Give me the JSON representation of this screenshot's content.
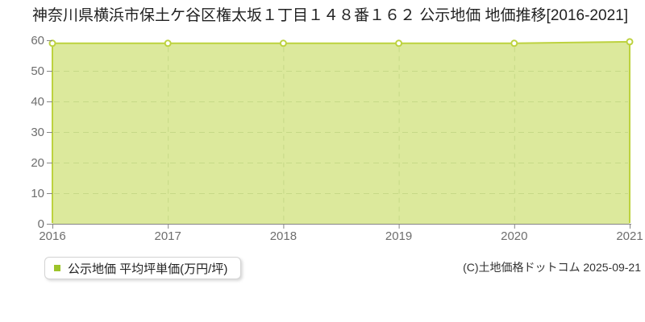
{
  "title": "神奈川県横浜市保土ケ谷区権太坂１丁目１４８番１６２ 公示地価 地価推移[2016-2021]",
  "legend": {
    "label": "公示地価 平均坪単価(万円/坪)"
  },
  "copyright": "(C)土地価格ドットコム 2025-09-21",
  "colors": {
    "area_fill": "#dce99c",
    "series_line": "#bdd23f",
    "marker_fill": "#ffffff",
    "grid_line": "#c6d987",
    "axis_line": "#858585",
    "tick_label": "#6e6e6e",
    "legend_marker": "#9dc42a"
  },
  "chart_data": {
    "type": "area",
    "title": "神奈川県横浜市保土ケ谷区権太坂１丁目１４８番１６２ 公示地価 地価推移[2016-2021]",
    "x_labels": [
      "2016",
      "2017",
      "2018",
      "2019",
      "2020",
      "2021"
    ],
    "series": [
      {
        "name": "公示地価 平均坪単価(万円/坪)",
        "values": [
          59,
          59,
          59,
          59,
          59,
          59.5
        ]
      }
    ],
    "xlabel": "",
    "ylabel": "",
    "ylim": [
      0,
      60
    ],
    "y_ticks": [
      0,
      10,
      20,
      30,
      40,
      50,
      60
    ],
    "grid": "dashed",
    "legend_position": "bottom-left"
  }
}
